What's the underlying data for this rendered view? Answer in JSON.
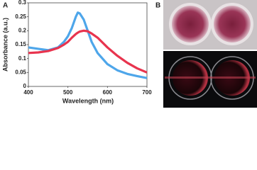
{
  "chart_data": {
    "type": "line",
    "panel_labels": [
      "A",
      "B"
    ],
    "xlabel": "Wavelength (nm)",
    "ylabel": "Absorbance (a.u.)",
    "x": [
      400,
      425,
      450,
      475,
      490,
      500,
      510,
      520,
      525,
      530,
      540,
      550,
      560,
      575,
      600,
      625,
      650,
      675,
      700
    ],
    "series": [
      {
        "color": "#4ea6ea",
        "values": [
          0.14,
          0.135,
          0.13,
          0.14,
          0.16,
          0.18,
          0.21,
          0.25,
          0.265,
          0.262,
          0.24,
          0.2,
          0.16,
          0.12,
          0.08,
          0.058,
          0.045,
          0.037,
          0.03
        ]
      },
      {
        "color": "#e8344e",
        "values": [
          0.12,
          0.122,
          0.127,
          0.138,
          0.15,
          0.16,
          0.175,
          0.188,
          0.193,
          0.197,
          0.2,
          0.198,
          0.19,
          0.175,
          0.14,
          0.11,
          0.085,
          0.065,
          0.05
        ]
      }
    ],
    "xlim": [
      400,
      700
    ],
    "xticks": [
      400,
      500,
      600,
      700
    ],
    "ylim": [
      0,
      0.3
    ],
    "yticks": [
      0,
      0.05,
      0.1,
      0.15,
      0.2,
      0.25,
      0.3
    ]
  }
}
